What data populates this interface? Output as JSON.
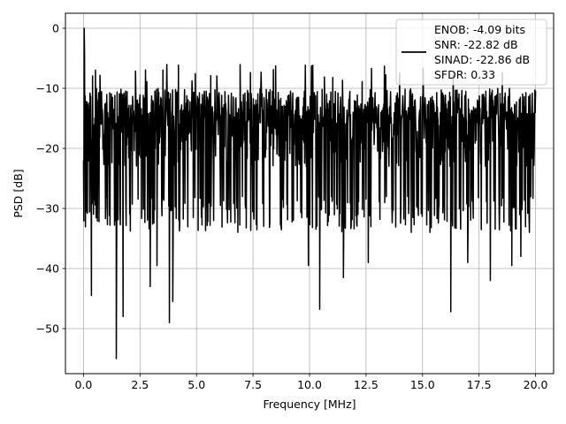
{
  "chart_data": {
    "type": "line",
    "xlabel": "Frequency [MHz]",
    "ylabel": "PSD [dB]",
    "xlim": [
      -0.8,
      20.8
    ],
    "ylim": [
      -57.5,
      2.5
    ],
    "x_ticks": [
      0.0,
      2.5,
      5.0,
      7.5,
      10.0,
      12.5,
      15.0,
      17.5,
      20.0
    ],
    "x_tick_labels": [
      "0.0",
      "2.5",
      "5.0",
      "7.5",
      "10.0",
      "12.5",
      "15.0",
      "17.5",
      "20.0"
    ],
    "y_ticks": [
      0,
      -10,
      -20,
      -30,
      -40,
      -50
    ],
    "y_tick_labels": [
      "0",
      "−10",
      "−20",
      "−30",
      "−40",
      "−50"
    ],
    "grid": true,
    "legend_position": "top-right",
    "series": [
      {
        "color": "#000000",
        "x_range_mhz": [
          0,
          20
        ],
        "peak_db": 0,
        "typical_high_db": -10,
        "typical_mid_db": -18,
        "typical_low_db": -28,
        "notable_minima": [
          {
            "x": 0.35,
            "y": -44.5
          },
          {
            "x": 1.45,
            "y": -55.0
          },
          {
            "x": 1.75,
            "y": -48.0
          },
          {
            "x": 2.95,
            "y": -43.0
          },
          {
            "x": 3.25,
            "y": -39.5
          },
          {
            "x": 3.8,
            "y": -49.0
          },
          {
            "x": 3.95,
            "y": -45.5
          },
          {
            "x": 9.95,
            "y": -39.5
          },
          {
            "x": 10.45,
            "y": -46.8
          },
          {
            "x": 11.5,
            "y": -41.5
          },
          {
            "x": 12.6,
            "y": -39.0
          },
          {
            "x": 16.25,
            "y": -47.2
          },
          {
            "x": 17.0,
            "y": -39.0
          },
          {
            "x": 18.0,
            "y": -42.0
          },
          {
            "x": 18.95,
            "y": -39.5
          },
          {
            "x": 19.35,
            "y": -38.0
          }
        ]
      }
    ]
  },
  "legend": {
    "lines": [
      "ENOB: -4.09 bits",
      "SNR: -22.82 dB",
      "SINAD: -22.86 dB",
      "SFDR: 0.33"
    ]
  }
}
